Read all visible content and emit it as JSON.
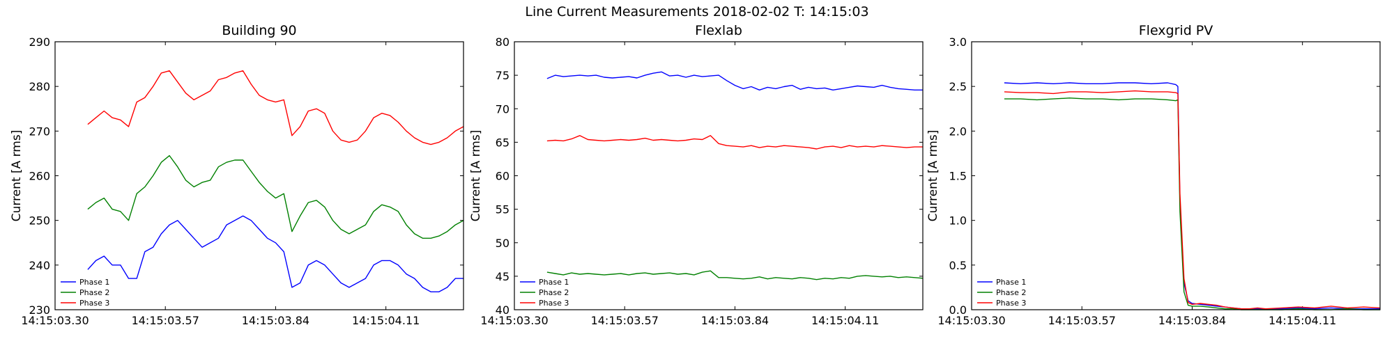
{
  "title": "Line Current Measurements 2018-02-02 T: 14:15:03",
  "colors": {
    "Phase 1": "#0000ff",
    "Phase 2": "#008000",
    "Phase 3": "#ff0000"
  },
  "chart_data": [
    {
      "type": "line",
      "title": "Building 90",
      "ylabel": "Current [A rms]",
      "ylim": [
        230,
        290
      ],
      "yticks": [
        "230",
        "240",
        "250",
        "260",
        "270",
        "280",
        "290"
      ],
      "xlim": [
        0,
        1.0
      ],
      "xtick_positions": [
        0.0,
        0.27,
        0.54,
        0.81
      ],
      "xtick_labels": [
        "14:15:03.30",
        "14:15:03.57",
        "14:15:03.84",
        "14:15:04.11"
      ],
      "legend": "lower-left",
      "series": [
        {
          "name": "Phase 1",
          "color": "#0000ff",
          "x": [
            0.08,
            0.1,
            0.12,
            0.14,
            0.16,
            0.18,
            0.2,
            0.22,
            0.24,
            0.26,
            0.28,
            0.3,
            0.32,
            0.34,
            0.36,
            0.38,
            0.4,
            0.42,
            0.44,
            0.46,
            0.48,
            0.5,
            0.52,
            0.54,
            0.56,
            0.58,
            0.6,
            0.62,
            0.64,
            0.66,
            0.68,
            0.7,
            0.72,
            0.74,
            0.76,
            0.78,
            0.8,
            0.82,
            0.84,
            0.86,
            0.88,
            0.9,
            0.92,
            0.94,
            0.96,
            0.98,
            1.0
          ],
          "y": [
            239,
            241,
            242,
            240,
            240,
            237,
            237,
            243,
            244,
            247,
            249,
            250,
            248,
            246,
            244,
            245,
            246,
            249,
            250,
            251,
            250,
            248,
            246,
            245,
            243,
            235,
            236,
            240,
            241,
            240,
            238,
            236,
            235,
            236,
            237,
            240,
            241,
            241,
            240,
            238,
            237,
            235,
            234,
            234,
            235,
            237,
            237
          ]
        },
        {
          "name": "Phase 2",
          "color": "#008000",
          "x": [
            0.08,
            0.1,
            0.12,
            0.14,
            0.16,
            0.18,
            0.2,
            0.22,
            0.24,
            0.26,
            0.28,
            0.3,
            0.32,
            0.34,
            0.36,
            0.38,
            0.4,
            0.42,
            0.44,
            0.46,
            0.48,
            0.5,
            0.52,
            0.54,
            0.56,
            0.58,
            0.6,
            0.62,
            0.64,
            0.66,
            0.68,
            0.7,
            0.72,
            0.74,
            0.76,
            0.78,
            0.8,
            0.82,
            0.84,
            0.86,
            0.88,
            0.9,
            0.92,
            0.94,
            0.96,
            0.98,
            1.0
          ],
          "y": [
            252.5,
            254,
            255,
            252.5,
            252,
            250,
            256,
            257.5,
            260,
            263,
            264.5,
            262,
            259,
            257.5,
            258.5,
            259,
            262,
            263,
            263.5,
            263.5,
            261,
            258.5,
            256.5,
            255,
            256,
            247.5,
            251,
            254,
            254.5,
            253,
            250,
            248,
            247,
            248,
            249,
            252,
            253.5,
            253,
            252,
            249,
            247,
            246,
            246,
            246.5,
            247.5,
            249,
            250
          ]
        },
        {
          "name": "Phase 3",
          "color": "#ff0000",
          "x": [
            0.08,
            0.1,
            0.12,
            0.14,
            0.16,
            0.18,
            0.2,
            0.22,
            0.24,
            0.26,
            0.28,
            0.3,
            0.32,
            0.34,
            0.36,
            0.38,
            0.4,
            0.42,
            0.44,
            0.46,
            0.48,
            0.5,
            0.52,
            0.54,
            0.56,
            0.58,
            0.6,
            0.62,
            0.64,
            0.66,
            0.68,
            0.7,
            0.72,
            0.74,
            0.76,
            0.78,
            0.8,
            0.82,
            0.84,
            0.86,
            0.88,
            0.9,
            0.92,
            0.94,
            0.96,
            0.98,
            1.0
          ],
          "y": [
            271.5,
            273,
            274.5,
            273,
            272.5,
            271,
            276.5,
            277.5,
            280,
            283,
            283.5,
            281,
            278.5,
            277,
            278,
            279,
            281.5,
            282,
            283,
            283.5,
            280.5,
            278,
            277,
            276.5,
            277,
            269,
            271,
            274.5,
            275,
            274,
            270,
            268,
            267.5,
            268,
            270,
            273,
            274,
            273.5,
            272,
            270,
            268.5,
            267.5,
            267,
            267.5,
            268.5,
            270,
            271
          ]
        }
      ]
    },
    {
      "type": "line",
      "title": "Flexlab",
      "ylabel": "Current [A rms]",
      "ylim": [
        40,
        80
      ],
      "yticks": [
        "40",
        "45",
        "50",
        "55",
        "60",
        "65",
        "70",
        "75",
        "80"
      ],
      "xlim": [
        0,
        1.0
      ],
      "xtick_positions": [
        0.0,
        0.27,
        0.54,
        0.81
      ],
      "xtick_labels": [
        "14:15:03.30",
        "14:15:03.57",
        "14:15:03.84",
        "14:15:04.11"
      ],
      "legend": "lower-left",
      "series": [
        {
          "name": "Phase 1",
          "color": "#0000ff",
          "x": [
            0.08,
            0.1,
            0.12,
            0.14,
            0.16,
            0.18,
            0.2,
            0.22,
            0.24,
            0.26,
            0.28,
            0.3,
            0.32,
            0.34,
            0.36,
            0.38,
            0.4,
            0.42,
            0.44,
            0.46,
            0.48,
            0.5,
            0.52,
            0.54,
            0.56,
            0.58,
            0.6,
            0.62,
            0.64,
            0.66,
            0.68,
            0.7,
            0.72,
            0.74,
            0.76,
            0.78,
            0.8,
            0.82,
            0.84,
            0.86,
            0.88,
            0.9,
            0.92,
            0.94,
            0.96,
            0.98,
            1.0
          ],
          "y": [
            74.5,
            75,
            74.8,
            74.9,
            75,
            74.9,
            75,
            74.7,
            74.6,
            74.7,
            74.8,
            74.6,
            75,
            75.3,
            75.5,
            74.9,
            75,
            74.7,
            75,
            74.8,
            74.9,
            75,
            74.2,
            73.5,
            73,
            73.3,
            72.8,
            73.2,
            73,
            73.3,
            73.5,
            72.9,
            73.2,
            73,
            73.1,
            72.8,
            73,
            73.2,
            73.4,
            73.3,
            73.2,
            73.5,
            73.2,
            73,
            72.9,
            72.8,
            72.8
          ]
        },
        {
          "name": "Phase 2",
          "color": "#008000",
          "x": [
            0.08,
            0.1,
            0.12,
            0.14,
            0.16,
            0.18,
            0.2,
            0.22,
            0.24,
            0.26,
            0.28,
            0.3,
            0.32,
            0.34,
            0.36,
            0.38,
            0.4,
            0.42,
            0.44,
            0.46,
            0.48,
            0.5,
            0.52,
            0.54,
            0.56,
            0.58,
            0.6,
            0.62,
            0.64,
            0.66,
            0.68,
            0.7,
            0.72,
            0.74,
            0.76,
            0.78,
            0.8,
            0.82,
            0.84,
            0.86,
            0.88,
            0.9,
            0.92,
            0.94,
            0.96,
            0.98,
            1.0
          ],
          "y": [
            45.6,
            45.4,
            45.2,
            45.5,
            45.3,
            45.4,
            45.3,
            45.2,
            45.3,
            45.4,
            45.2,
            45.4,
            45.5,
            45.3,
            45.4,
            45.5,
            45.3,
            45.4,
            45.2,
            45.6,
            45.8,
            44.8,
            44.8,
            44.7,
            44.6,
            44.7,
            44.9,
            44.6,
            44.8,
            44.7,
            44.6,
            44.8,
            44.7,
            44.5,
            44.7,
            44.6,
            44.8,
            44.7,
            45,
            45.1,
            45,
            44.9,
            45,
            44.8,
            44.9,
            44.8,
            44.7
          ]
        },
        {
          "name": "Phase 3",
          "color": "#ff0000",
          "x": [
            0.08,
            0.1,
            0.12,
            0.14,
            0.16,
            0.18,
            0.2,
            0.22,
            0.24,
            0.26,
            0.28,
            0.3,
            0.32,
            0.34,
            0.36,
            0.38,
            0.4,
            0.42,
            0.44,
            0.46,
            0.48,
            0.5,
            0.52,
            0.54,
            0.56,
            0.58,
            0.6,
            0.62,
            0.64,
            0.66,
            0.68,
            0.7,
            0.72,
            0.74,
            0.76,
            0.78,
            0.8,
            0.82,
            0.84,
            0.86,
            0.88,
            0.9,
            0.92,
            0.94,
            0.96,
            0.98,
            1.0
          ],
          "y": [
            65.2,
            65.3,
            65.2,
            65.5,
            66,
            65.4,
            65.3,
            65.2,
            65.3,
            65.4,
            65.3,
            65.4,
            65.6,
            65.3,
            65.4,
            65.3,
            65.2,
            65.3,
            65.5,
            65.4,
            66,
            64.8,
            64.5,
            64.4,
            64.3,
            64.5,
            64.2,
            64.4,
            64.3,
            64.5,
            64.4,
            64.3,
            64.2,
            64,
            64.3,
            64.4,
            64.2,
            64.5,
            64.3,
            64.4,
            64.3,
            64.5,
            64.4,
            64.3,
            64.2,
            64.3,
            64.3
          ]
        }
      ]
    },
    {
      "type": "line",
      "title": "Flexgrid PV",
      "ylabel": "Current [A rms]",
      "ylim": [
        0,
        3
      ],
      "yticks": [
        "0.0",
        "0.5",
        "1.0",
        "1.5",
        "2.0",
        "2.5",
        "3.0"
      ],
      "xlim": [
        0,
        1.0
      ],
      "xtick_positions": [
        0.0,
        0.27,
        0.54,
        0.81
      ],
      "xtick_labels": [
        "14:15:03.30",
        "14:15:03.57",
        "14:15:03.84",
        "14:15:04.11"
      ],
      "legend": "lower-left",
      "series": [
        {
          "name": "Phase 1",
          "color": "#0000ff",
          "x": [
            0.08,
            0.12,
            0.16,
            0.2,
            0.24,
            0.28,
            0.32,
            0.36,
            0.4,
            0.44,
            0.48,
            0.5,
            0.505,
            0.51,
            0.52,
            0.53,
            0.54,
            0.56,
            0.58,
            0.6,
            0.62,
            0.64,
            0.66,
            0.68,
            0.7,
            0.72,
            0.76,
            0.8,
            0.84,
            0.88,
            0.92,
            0.96,
            1.0
          ],
          "y": [
            2.54,
            2.53,
            2.54,
            2.53,
            2.54,
            2.53,
            2.53,
            2.54,
            2.54,
            2.53,
            2.54,
            2.52,
            2.5,
            1.2,
            0.3,
            0.1,
            0.07,
            0.06,
            0.05,
            0.04,
            0.03,
            0.02,
            0.01,
            0.01,
            0.01,
            0.01,
            0.01,
            0.02,
            0.01,
            0.02,
            0.01,
            0.01,
            0.01
          ]
        },
        {
          "name": "Phase 2",
          "color": "#008000",
          "x": [
            0.08,
            0.12,
            0.16,
            0.2,
            0.24,
            0.28,
            0.32,
            0.36,
            0.4,
            0.44,
            0.48,
            0.5,
            0.505,
            0.51,
            0.52,
            0.53,
            0.54,
            0.56,
            0.58,
            0.6,
            0.62,
            0.64,
            0.66,
            0.68,
            0.7,
            0.72,
            0.76,
            0.8,
            0.84,
            0.88,
            0.92,
            0.96,
            1.0
          ],
          "y": [
            2.36,
            2.36,
            2.35,
            2.36,
            2.37,
            2.36,
            2.36,
            2.35,
            2.36,
            2.36,
            2.35,
            2.34,
            2.35,
            1.1,
            0.2,
            0.05,
            0.04,
            0.04,
            0.03,
            0.02,
            0.01,
            0.01,
            0,
            0,
            0,
            0,
            0,
            0.01,
            0,
            0,
            0.01,
            0,
            0
          ]
        },
        {
          "name": "Phase 3",
          "color": "#ff0000",
          "x": [
            0.08,
            0.12,
            0.16,
            0.2,
            0.24,
            0.28,
            0.32,
            0.36,
            0.4,
            0.44,
            0.48,
            0.5,
            0.505,
            0.51,
            0.52,
            0.53,
            0.54,
            0.56,
            0.58,
            0.6,
            0.62,
            0.64,
            0.66,
            0.68,
            0.7,
            0.72,
            0.76,
            0.8,
            0.84,
            0.88,
            0.92,
            0.96,
            1.0
          ],
          "y": [
            2.44,
            2.43,
            2.43,
            2.42,
            2.44,
            2.44,
            2.43,
            2.44,
            2.45,
            2.44,
            2.44,
            2.43,
            2.42,
            1.3,
            0.35,
            0.08,
            0.06,
            0.07,
            0.06,
            0.05,
            0.03,
            0.02,
            0.01,
            0.01,
            0.02,
            0.01,
            0.02,
            0.03,
            0.02,
            0.04,
            0.02,
            0.03,
            0.02
          ]
        }
      ]
    }
  ]
}
